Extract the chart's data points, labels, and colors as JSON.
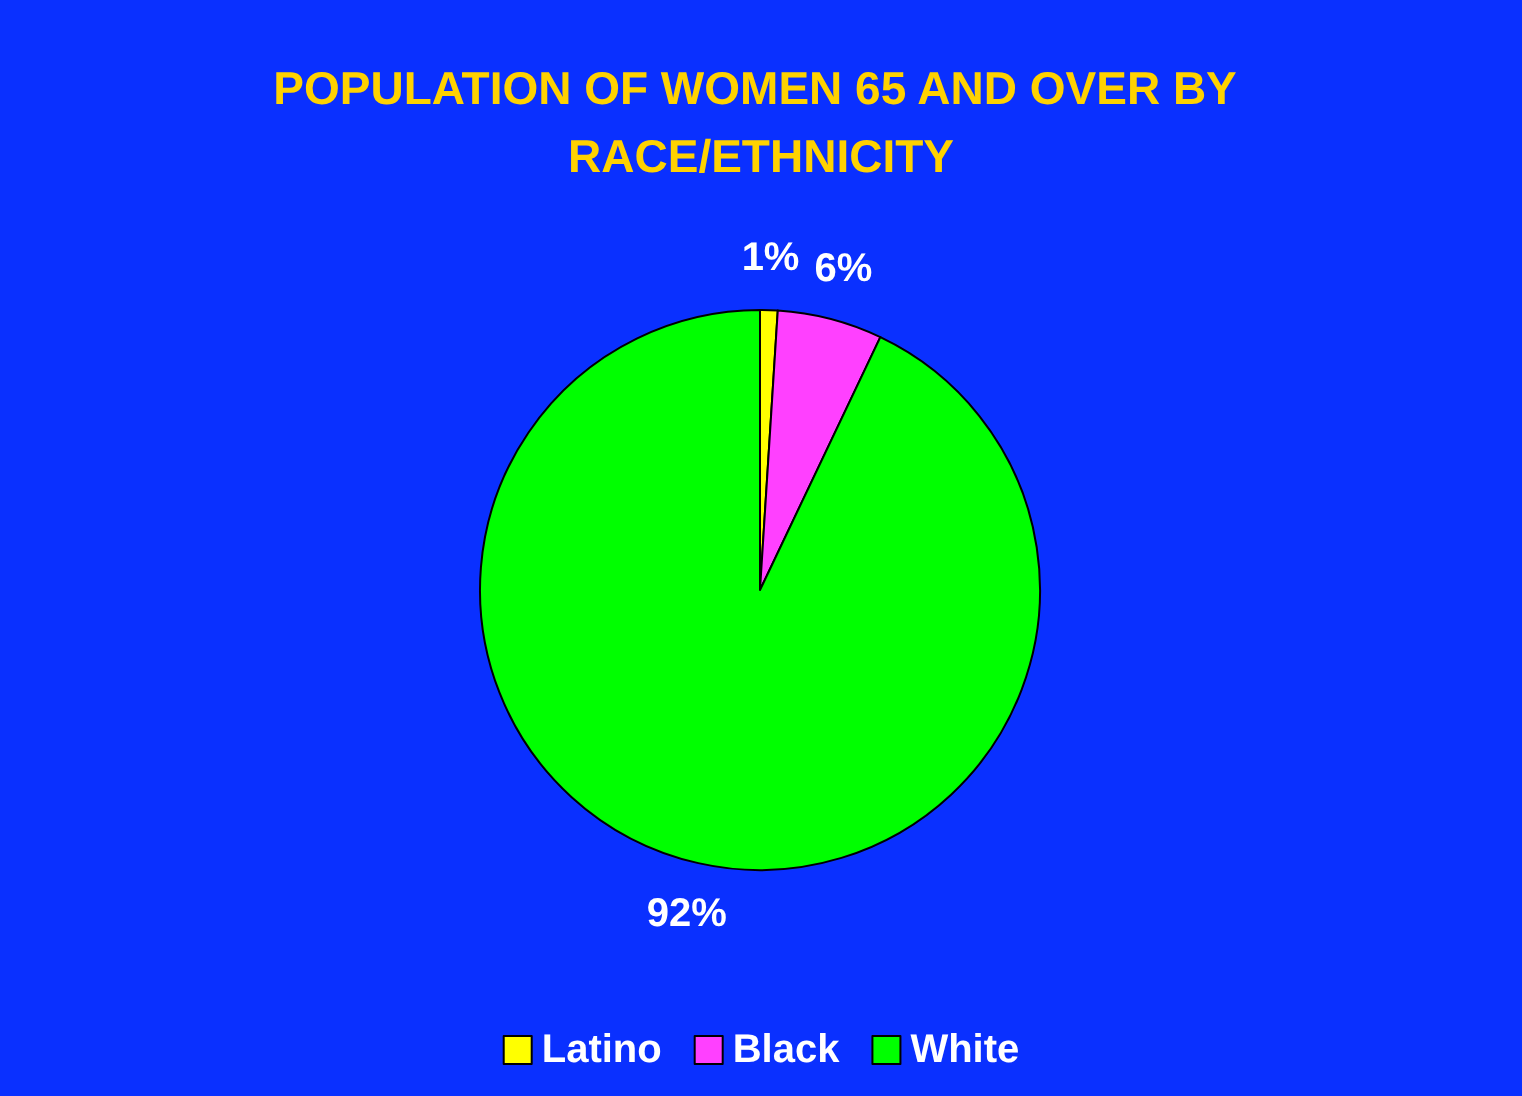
{
  "chart_data": {
    "type": "pie",
    "title": "POPULATION OF WOMEN 65 AND OVER BY RACE/ETHNICITY",
    "categories": [
      "Latino",
      "Black",
      "White"
    ],
    "values": [
      1,
      6,
      92
    ],
    "colors": [
      "#ffff00",
      "#ff40ff",
      "#00ff00"
    ],
    "value_labels": [
      "1%",
      "6%",
      "92%"
    ],
    "legend": "bottom"
  }
}
